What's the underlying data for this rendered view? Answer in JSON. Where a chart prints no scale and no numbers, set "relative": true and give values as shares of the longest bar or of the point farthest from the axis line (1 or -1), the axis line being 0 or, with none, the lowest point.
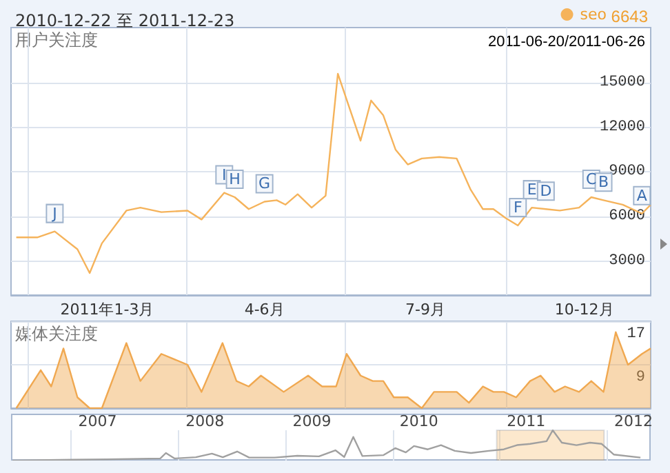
{
  "chart_data": [
    {
      "type": "line",
      "title": "2010-12-22 至 2011-12-23",
      "ylabel": "用户关注度",
      "legend": "top right",
      "marker": "none",
      "grid": true,
      "x": [
        "2010-12-25",
        "2011-01-06",
        "2011-01-16",
        "2011-01-29",
        "2011-02-05",
        "2011-02-12",
        "2011-02-26",
        "2011-03-06",
        "2011-03-18",
        "2011-04-02",
        "2011-04-10",
        "2011-04-23",
        "2011-04-29",
        "2011-05-07",
        "2011-05-16",
        "2011-05-23",
        "2011-05-28",
        "2011-06-04",
        "2011-06-12",
        "2011-06-20",
        "2011-06-27",
        "2011-07-10",
        "2011-07-16",
        "2011-07-23",
        "2011-07-30",
        "2011-08-06",
        "2011-08-14",
        "2011-08-24",
        "2011-09-03",
        "2011-09-11",
        "2011-09-18",
        "2011-09-24",
        "2011-10-01",
        "2011-10-08",
        "2011-10-16",
        "2011-10-24",
        "2011-11-01",
        "2011-11-12",
        "2011-11-19",
        "2011-11-26",
        "2011-12-07",
        "2011-12-18",
        "2011-12-23"
      ],
      "series": [
        {
          "name": "seo",
          "color": "#f5b35b",
          "values": [
            4600,
            4600,
            5000,
            3800,
            2200,
            4200,
            6400,
            6600,
            6300,
            6400,
            5800,
            7600,
            7300,
            6500,
            7000,
            7100,
            6800,
            7500,
            6600,
            7400,
            15600,
            11100,
            13800,
            12800,
            10500,
            9500,
            9900,
            10000,
            9900,
            7800,
            6500,
            6500,
            5900,
            5400,
            6600,
            6500,
            6400,
            6600,
            7300,
            7100,
            6800,
            6200,
            6800
          ]
        }
      ],
      "xlim": [
        "2010-12-22",
        "2011-12-23"
      ],
      "xticks": [
        {
          "value": "2011-01-01",
          "label": null
        },
        {
          "value": "2011-02-15",
          "label": "2011年1-3月"
        },
        {
          "value": "2011-04-01",
          "label": null
        },
        {
          "value": "2011-05-16",
          "label": "4-6月"
        },
        {
          "value": "2011-07-01",
          "label": null
        },
        {
          "value": "2011-08-16",
          "label": "7-9月"
        },
        {
          "value": "2011-10-01",
          "label": null
        },
        {
          "value": "2011-11-15",
          "label": "10-12月"
        }
      ],
      "ylim": [
        720,
        18700
      ],
      "yticks": [
        3000,
        6000,
        9000,
        12000,
        15000
      ],
      "annotations": [
        {
          "text": "J",
          "x": "2011-01-16",
          "y": 5000
        },
        {
          "text": "I",
          "x": "2011-04-23",
          "y": 7600
        },
        {
          "text": "H",
          "x": "2011-04-29",
          "y": 7300
        },
        {
          "text": "G",
          "x": "2011-05-16",
          "y": 7000
        },
        {
          "text": "F",
          "x": "2011-10-08",
          "y": 5400
        },
        {
          "text": "E",
          "x": "2011-10-16",
          "y": 6600
        },
        {
          "text": "D",
          "x": "2011-10-24",
          "y": 6500
        },
        {
          "text": "C",
          "x": "2011-11-19",
          "y": 7300
        },
        {
          "text": "B",
          "x": "2011-11-26",
          "y": 7100
        },
        {
          "text": "A",
          "x": "2011-12-18",
          "y": 6200
        },
        "2011-06-20/2011-06-26",
        "6643"
      ]
    },
    {
      "type": "area",
      "ylabel": "媒体关注度",
      "marker": "none",
      "grid": true,
      "tick_labels": "y",
      "x": [
        "2010-12-25",
        "2011-01-08",
        "2011-01-14",
        "2011-01-21",
        "2011-01-29",
        "2011-02-05",
        "2011-02-12",
        "2011-02-26",
        "2011-03-06",
        "2011-03-18",
        "2011-04-02",
        "2011-04-10",
        "2011-04-22",
        "2011-04-30",
        "2011-05-07",
        "2011-05-14",
        "2011-05-27",
        "2011-06-10",
        "2011-06-18",
        "2011-06-26",
        "2011-07-02",
        "2011-07-10",
        "2011-07-17",
        "2011-07-23",
        "2011-07-29",
        "2011-08-06",
        "2011-08-14",
        "2011-08-21",
        "2011-09-03",
        "2011-09-10",
        "2011-09-18",
        "2011-09-24",
        "2011-09-30",
        "2011-10-07",
        "2011-10-15",
        "2011-10-21",
        "2011-10-29",
        "2011-11-04",
        "2011-11-12",
        "2011-11-19",
        "2011-11-26",
        "2011-12-03",
        "2011-12-10",
        "2011-12-18",
        "2011-12-23"
      ],
      "series": [
        {
          "color": "#f0a850",
          "values": [
            1,
            8,
            5,
            12,
            3,
            1,
            1,
            13,
            6,
            11,
            9,
            4,
            13,
            6,
            5,
            7,
            4,
            7,
            5,
            5,
            11,
            7,
            6,
            6,
            3,
            3,
            1,
            4,
            4,
            2,
            5,
            4,
            4,
            3,
            6,
            7,
            4,
            5,
            4,
            6,
            4,
            15,
            9,
            11,
            12
          ]
        }
      ],
      "xlim": [
        "2010-12-22",
        "2011-12-23"
      ],
      "xticks": [
        {
          "value": "2011-01-01",
          "label": null
        },
        {
          "value": "2011-04-01",
          "label": null
        },
        {
          "value": "2011-07-01",
          "label": null
        },
        {
          "value": "2011-10-01",
          "label": null
        }
      ],
      "ylim": [
        1,
        17
      ],
      "yticks": [
        9,
        17
      ]
    },
    {
      "type": "line",
      "relative": true,
      "marker": "none",
      "grid": "x",
      "tick_labels": "x",
      "x": [
        "2006-06-15",
        "2007-01-01",
        "2007-05-01",
        "2007-11-01",
        "2007-11-20",
        "2007-12-20",
        "2008-03-01",
        "2008-04-25",
        "2008-06-01",
        "2008-07-20",
        "2008-08-30",
        "2008-11-25",
        "2009-02-10",
        "2009-04-25",
        "2009-06-20",
        "2009-07-20",
        "2009-08-20",
        "2009-09-20",
        "2009-12-01",
        "2010-01-10",
        "2010-02-15",
        "2010-03-15",
        "2010-05-01",
        "2010-06-15",
        "2010-08-01",
        "2010-09-25",
        "2010-11-25",
        "2011-01-15",
        "2011-03-01",
        "2011-04-15",
        "2011-06-10",
        "2011-07-01",
        "2011-08-01",
        "2011-09-20",
        "2011-11-05",
        "2011-12-15",
        "2012-01-25",
        "2012-04-25"
      ],
      "series": [
        {
          "color": "#a0a0a0",
          "values": [
            0,
            0.03,
            0.04,
            0.07,
            0.25,
            0.07,
            0.11,
            0.23,
            0.11,
            0.3,
            0.1,
            0.1,
            0.16,
            0.14,
            0.34,
            0.12,
            0.78,
            0.15,
            0.18,
            0.41,
            0.27,
            0.48,
            0.37,
            0.51,
            0.32,
            0.25,
            0.32,
            0.37,
            0.51,
            0.55,
            0.64,
            1,
            0.59,
            0.51,
            0.59,
            0.55,
            0.2,
            0.1
          ]
        }
      ],
      "bands": [
        {
          "axis": "x",
          "from": "2010-12-22",
          "to": "2011-12-23",
          "color": "#f5b35b"
        }
      ],
      "xlim": [
        "2006-06-10",
        "2012-05-30"
      ],
      "xticks": [
        {
          "value": "2007",
          "label": null
        },
        {
          "value": "2007-04-01",
          "label": "2007"
        },
        {
          "value": "2008",
          "label": null
        },
        {
          "value": "2008-04-01",
          "label": "2008"
        },
        {
          "value": "2009",
          "label": null
        },
        {
          "value": "2009-04-01",
          "label": "2009"
        },
        {
          "value": "2010",
          "label": null
        },
        {
          "value": "2010-04-01",
          "label": "2010"
        },
        {
          "value": "2011",
          "label": null
        },
        {
          "value": "2011-04-01",
          "label": "2011"
        },
        {
          "value": "2012",
          "label": null
        },
        {
          "value": "2012-04-01",
          "label": "2012"
        }
      ]
    }
  ]
}
